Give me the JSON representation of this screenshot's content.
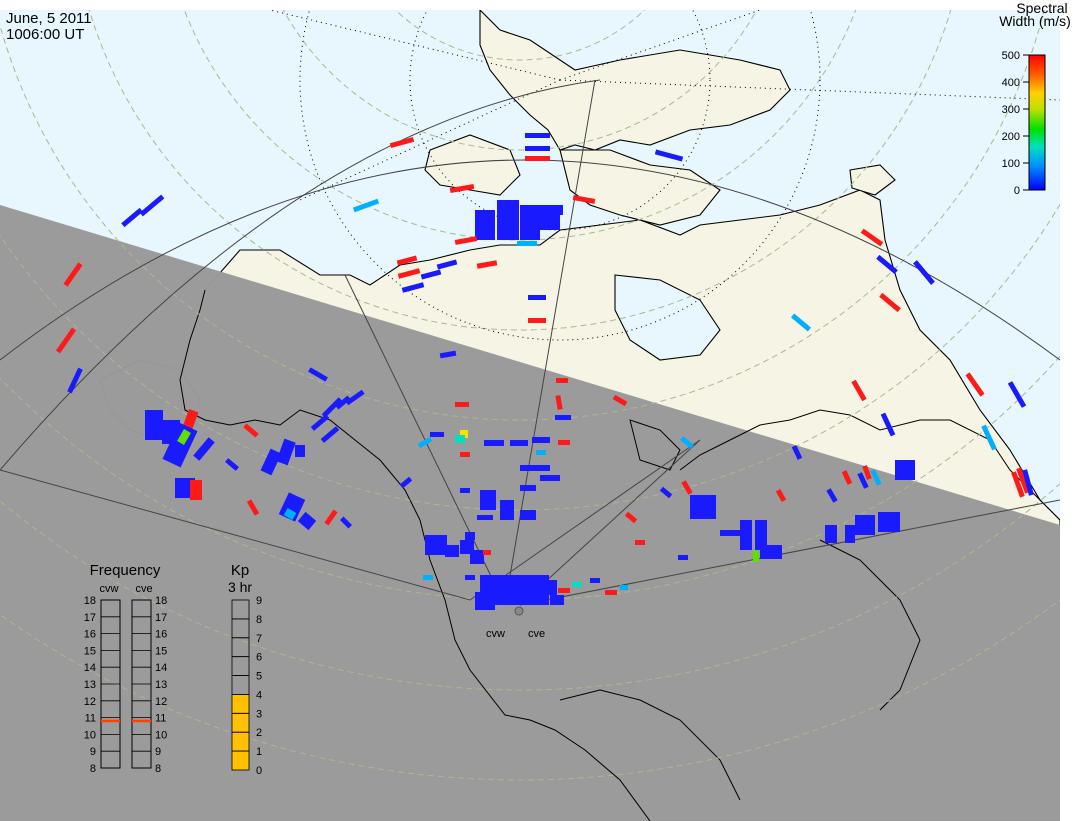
{
  "header": {
    "date": "June, 5 2011",
    "time": "1006:00 UT"
  },
  "colorbar": {
    "title_line1": "Spectral",
    "title_line2": "Width (m/s)",
    "ticks": [
      "500",
      "400",
      "300",
      "200",
      "100",
      "0"
    ]
  },
  "frequency_panel": {
    "title": "Frequency",
    "radars": [
      "cvw",
      "cve"
    ],
    "ticks": [
      "18",
      "17",
      "16",
      "15",
      "14",
      "13",
      "12",
      "11",
      "10",
      "9",
      "8"
    ],
    "values_mhz": [
      10.8,
      10.8
    ]
  },
  "kp_panel": {
    "title_line1": "Kp",
    "title_line2": "3 hr",
    "ticks": [
      "9",
      "8",
      "7",
      "6",
      "5",
      "4",
      "3",
      "2",
      "1",
      "0"
    ],
    "value": 4
  },
  "site_labels": [
    "cvw",
    "cve"
  ],
  "colors": {
    "ocean": "#e8f6fd",
    "land": "#f6f4e4",
    "night": "#999999",
    "frequency_mark": "#ff4000",
    "kp_fill": "#ffc000"
  }
}
